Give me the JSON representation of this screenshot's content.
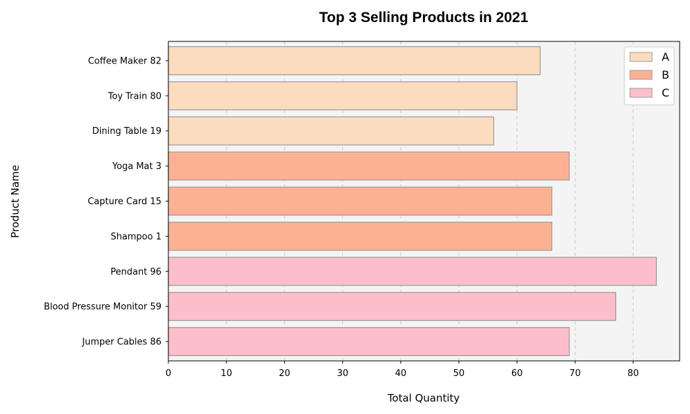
{
  "chart_data": {
    "type": "bar",
    "orientation": "horizontal",
    "title": "Top 3 Selling Products in 2021",
    "xlabel": "Total Quantity",
    "ylabel": "Product Name",
    "xlim": [
      0,
      88
    ],
    "xticks": [
      0,
      10,
      20,
      30,
      40,
      50,
      60,
      70,
      80
    ],
    "grid": "x-dashed",
    "legend_position": "top-right",
    "groups": [
      {
        "name": "A",
        "color": "#fcdcbe"
      },
      {
        "name": "B",
        "color": "#fcb292"
      },
      {
        "name": "C",
        "color": "#fcbfca"
      }
    ],
    "bars": [
      {
        "label": "Coffee Maker 82",
        "value": 64,
        "group": "A"
      },
      {
        "label": "Toy Train 80",
        "value": 60,
        "group": "A"
      },
      {
        "label": "Dining Table 19",
        "value": 56,
        "group": "A"
      },
      {
        "label": "Yoga Mat 3",
        "value": 69,
        "group": "B"
      },
      {
        "label": "Capture Card 15",
        "value": 66,
        "group": "B"
      },
      {
        "label": "Shampoo 1",
        "value": 66,
        "group": "B"
      },
      {
        "label": "Pendant 96",
        "value": 84,
        "group": "C"
      },
      {
        "label": "Blood Pressure Monitor 59",
        "value": 77,
        "group": "C"
      },
      {
        "label": "Jumper Cables 86",
        "value": 69,
        "group": "C"
      }
    ]
  }
}
